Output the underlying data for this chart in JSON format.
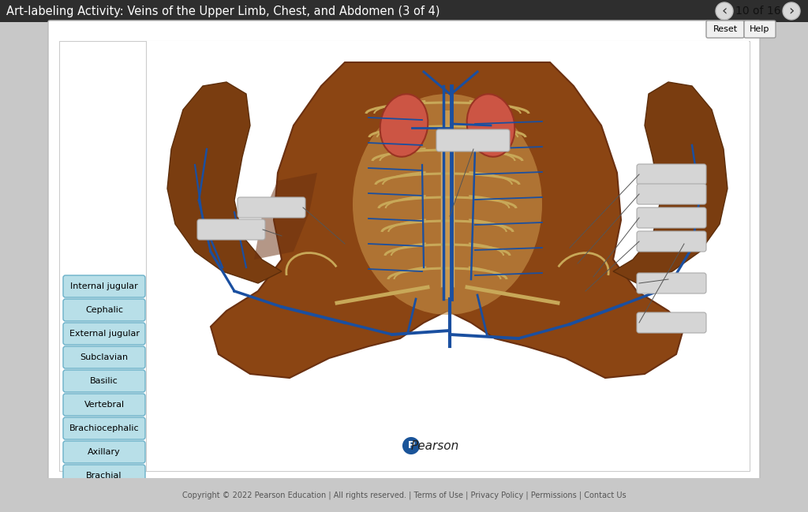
{
  "title": "Art-labeling Activity: Veins of the Upper Limb, Chest, and Abdomen (3 of 4)",
  "page_info": "10 of 16",
  "left_labels": [
    "Internal jugular",
    "Cephalic",
    "External jugular",
    "Subclavian",
    "Basilic",
    "Vertebral",
    "Brachiocephalic",
    "Axillary",
    "Brachial"
  ],
  "footer_text": "Copyright © 2022 Pearson Education | All rights reserved. | Terms of Use | Privacy Policy | Permissions | Contact Us"
}
